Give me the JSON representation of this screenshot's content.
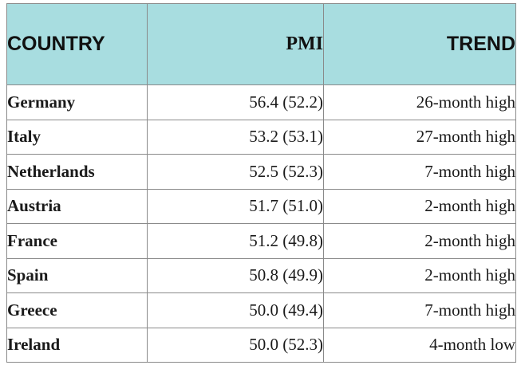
{
  "table": {
    "headers": {
      "country": "COUNTRY",
      "pmi": "PMI",
      "trend": "TREND"
    },
    "header_bg": "#a8dde0",
    "rows": [
      {
        "country": "Germany",
        "pmi": "56.4 (52.2)",
        "trend": "26-month high"
      },
      {
        "country": "Italy",
        "pmi": "53.2 (53.1)",
        "trend": "27-month high"
      },
      {
        "country": "Netherlands",
        "pmi": "52.5 (52.3)",
        "trend": "7-month high"
      },
      {
        "country": "Austria",
        "pmi": "51.7 (51.0)",
        "trend": "2-month high"
      },
      {
        "country": "France",
        "pmi": "51.2 (49.8)",
        "trend": "2-month high"
      },
      {
        "country": "Spain",
        "pmi": "50.8 (49.9)",
        "trend": "2-month high"
      },
      {
        "country": "Greece",
        "pmi": "50.0 (49.4)",
        "trend": "7-month high"
      },
      {
        "country": "Ireland",
        "pmi": "50.0 (52.3)",
        "trend": "4-month low"
      }
    ]
  }
}
